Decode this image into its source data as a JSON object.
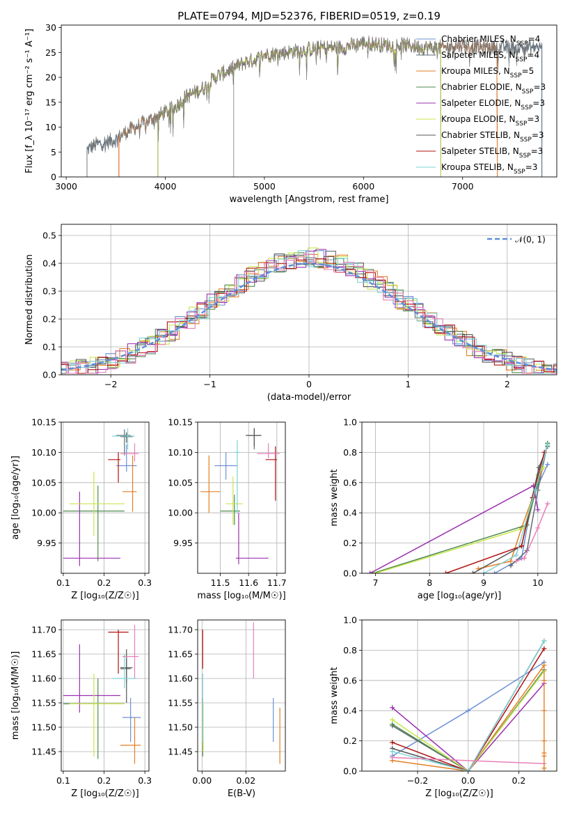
{
  "colors": {
    "Chabrier MILES": "#6b8fd6",
    "Salpeter MILES": "#5f6b73",
    "Kroupa MILES": "#e67e22",
    "Chabrier ELODIE": "#4f8a4f",
    "Salpeter ELODIE": "#9b30b0",
    "Kroupa ELODIE": "#c8e64c",
    "Chabrier STELIB": "#555555",
    "Salpeter STELIB": "#b01010",
    "Kroupa STELIB": "#7ed3d6",
    "Extra": "#e87fb8",
    "gauss": "#5b8fd9",
    "grid": "#b0b0b0"
  },
  "figure_title": "PLATE=0794, MJD=52376, FIBERID=0519, z=0.19",
  "chart_data": [
    {
      "id": "spectrum",
      "type": "line",
      "xlabel": "wavelength [Angstrom, rest frame]",
      "ylabel": "Flux [f_λ 10⁻¹⁷ erg cm⁻² s⁻¹ A⁻¹]",
      "xlim": [
        2950,
        7950
      ],
      "ylim": [
        0,
        30.5
      ],
      "xticks": [
        "3000",
        "4000",
        "5000",
        "6000",
        "7000"
      ],
      "yticks": [
        "0",
        "5",
        "10",
        "15",
        "20",
        "25",
        "30"
      ],
      "grid": false,
      "legend_position": "right",
      "legend": [
        "Chabrier MILES, N_SSP=4",
        "Salpeter MILES, N_SSP=4",
        "Kroupa MILES, N_SSP=5",
        "Chabrier ELODIE, N_SSP=3",
        "Salpeter ELODIE, N_SSP=3",
        "Kroupa ELODIE, N_SSP=3",
        "Chabrier STELIB, N_SSP=3",
        "Salpeter STELIB, N_SSP=3",
        "Kroupa STELIB, N_SSP=3"
      ],
      "continuum_x": [
        3210,
        3300,
        3400,
        3500,
        3600,
        3700,
        3800,
        3900,
        4000,
        4100,
        4200,
        4300,
        4400,
        4500,
        4600,
        4700,
        4800,
        4900,
        5000,
        5200,
        5400,
        5600,
        5800,
        6000,
        6200,
        6400,
        6600,
        6800,
        7000,
        7200,
        7400,
        7800
      ],
      "continuum_y": [
        5.5,
        6.5,
        7,
        7.5,
        9,
        10,
        11,
        12,
        13,
        14,
        16,
        17,
        18,
        20,
        21,
        22,
        23,
        23.5,
        24.5,
        25,
        25.5,
        26,
        26,
        27,
        26.5,
        26.5,
        26,
        26,
        26.5,
        26,
        26,
        26
      ],
      "model_starts": [
        3210,
        3210,
        3530,
        3920,
        3920,
        3920,
        3210,
        3530,
        3210
      ],
      "model_ends": [
        7800,
        7800,
        7350,
        6780,
        6780,
        6780,
        7800,
        7350,
        7800
      ],
      "data_spikes_x": [
        4690
      ]
    },
    {
      "id": "residuals",
      "type": "bar",
      "xlabel": "(data-model)/error",
      "ylabel": "Normed distribution",
      "xlim": [
        -2.5,
        2.5
      ],
      "ylim": [
        0,
        0.54
      ],
      "xticks": [
        "−2",
        "−1",
        "0",
        "1",
        "2"
      ],
      "yticks": [
        "0.0",
        "0.1",
        "0.2",
        "0.3",
        "0.4",
        "0.5"
      ],
      "grid": true,
      "legend_position": "top-right",
      "legend": [
        "𝒩(0, 1)"
      ],
      "bin_width": 0.1,
      "note": "step histograms, one per model"
    },
    {
      "id": "age_vs_Z",
      "type": "scatter",
      "xlabel": "Z [log₁₀(Z/Z☉)]",
      "ylabel": "age  [log₁₀(age/yr)]",
      "xlim": [
        0.095,
        0.31
      ],
      "ylim": [
        9.9,
        10.15
      ],
      "xticks": [
        "0.1",
        "0.2",
        "0.3"
      ],
      "yticks": [
        "9.95",
        "10.00",
        "10.05",
        "10.10",
        "10.15"
      ],
      "grid": true,
      "points": [
        {
          "m": 0,
          "x": 0.255,
          "xerr": [
            0.23,
            0.28
          ],
          "y": 10.078,
          "yerr": [
            10.068,
            10.113
          ]
        },
        {
          "m": 1,
          "x": 0.25,
          "xerr": [
            0.23,
            0.265
          ],
          "y": 10.128,
          "yerr": [
            10.095,
            10.138
          ]
        },
        {
          "m": 2,
          "x": 0.27,
          "xerr": [
            0.245,
            0.28
          ],
          "y": 10.035,
          "yerr": [
            10.002,
            10.095
          ]
        },
        {
          "m": 3,
          "x": 0.185,
          "xerr": [
            0.1,
            0.25
          ],
          "y": 10.003,
          "yerr": [
            9.92,
            10.045
          ]
        },
        {
          "m": 4,
          "x": 0.14,
          "xerr": [
            0.1,
            0.24
          ],
          "y": 9.925,
          "yerr": [
            9.912,
            10.035
          ]
        },
        {
          "m": 5,
          "x": 0.175,
          "xerr": [
            0.115,
            0.25
          ],
          "y": 10.015,
          "yerr": [
            9.962,
            10.068
          ]
        },
        {
          "m": 6,
          "x": 0.255,
          "xerr": [
            0.24,
            0.27
          ],
          "y": 10.126,
          "yerr": [
            10.116,
            10.133
          ]
        },
        {
          "m": 7,
          "x": 0.235,
          "xerr": [
            0.21,
            0.24
          ],
          "y": 10.088,
          "yerr": [
            10.05,
            10.1
          ]
        },
        {
          "m": 8,
          "x": 0.258,
          "xerr": [
            0.22,
            0.275
          ],
          "y": 10.127,
          "yerr": [
            10.105,
            10.14
          ]
        },
        {
          "m": 9,
          "x": 0.275,
          "xerr": [
            0.24,
            0.285
          ],
          "y": 10.098,
          "yerr": [
            10.085,
            10.115
          ]
        }
      ]
    },
    {
      "id": "age_vs_mass",
      "type": "scatter",
      "xlabel": "mass [log₁₀(M/M☉)]",
      "xlim": [
        11.42,
        11.73
      ],
      "ylim": [
        9.9,
        10.15
      ],
      "xticks": [
        "11.5",
        "11.6",
        "11.7"
      ],
      "yticks": [
        "9.95",
        "10.00",
        "10.05",
        "10.10",
        "10.15"
      ],
      "grid": true,
      "points": [
        {
          "m": 0,
          "x": 11.52,
          "xerr": [
            11.48,
            11.56
          ],
          "y": 10.078,
          "yerr": [
            10.055,
            10.1
          ]
        },
        {
          "m": 1,
          "x": 11.62,
          "xerr": [
            11.6,
            11.645
          ],
          "y": 10.128,
          "yerr": [
            10.105,
            10.14
          ]
        },
        {
          "m": 2,
          "x": 11.46,
          "xerr": [
            11.43,
            11.5
          ],
          "y": 10.035,
          "yerr": [
            10.0,
            10.095
          ]
        },
        {
          "m": 3,
          "x": 11.55,
          "xerr": [
            11.5,
            11.57
          ],
          "y": 10.003,
          "yerr": [
            9.98,
            10.03
          ]
        },
        {
          "m": 4,
          "x": 11.565,
          "xerr": [
            11.555,
            11.67
          ],
          "y": 9.925,
          "yerr": [
            9.915,
            10.0
          ]
        },
        {
          "m": 5,
          "x": 11.545,
          "xerr": [
            11.52,
            11.58
          ],
          "y": 10.015,
          "yerr": [
            9.98,
            10.06
          ]
        },
        {
          "m": 6,
          "x": 11.62,
          "xerr": [
            11.59,
            11.645
          ],
          "y": 10.128,
          "yerr": [
            10.11,
            10.14
          ]
        },
        {
          "m": 7,
          "x": 11.695,
          "xerr": [
            11.66,
            11.7
          ],
          "y": 10.088,
          "yerr": [
            10.02,
            10.11
          ]
        },
        {
          "m": 8,
          "x": 11.56,
          "xerr": [
            11.55,
            11.57
          ],
          "y": 10.1,
          "yerr": [
            10.0,
            10.12
          ]
        },
        {
          "m": 9,
          "x": 11.67,
          "xerr": [
            11.63,
            11.71
          ],
          "y": 10.098,
          "yerr": [
            10.09,
            10.115
          ]
        }
      ]
    },
    {
      "id": "massweight_vs_age",
      "type": "line",
      "xlabel": "age  [log₁₀(age/yr)]",
      "ylabel": "mass weight",
      "xlim": [
        6.75,
        10.35
      ],
      "ylim": [
        0,
        1
      ],
      "xticks": [
        "7",
        "8",
        "9",
        "10"
      ],
      "yticks": [
        "0.0",
        "0.2",
        "0.4",
        "0.6",
        "0.8",
        "1.0"
      ],
      "grid": true,
      "series": [
        {
          "m": 0,
          "x": [
            9.2,
            9.7,
            9.9,
            10.18
          ],
          "y": [
            0.0,
            0.1,
            0.5,
            0.72
          ]
        },
        {
          "m": 1,
          "x": [
            9.5,
            9.8,
            10.0,
            10.18
          ],
          "y": [
            0.05,
            0.15,
            0.55,
            0.86
          ]
        },
        {
          "m": 2,
          "x": [
            8.9,
            9.5,
            9.7,
            10.1
          ],
          "y": [
            0.03,
            0.08,
            0.3,
            0.7
          ]
        },
        {
          "m": 3,
          "x": [
            6.95,
            9.8,
            10.0,
            10.18
          ],
          "y": [
            0.0,
            0.32,
            0.6,
            0.86
          ]
        },
        {
          "m": 4,
          "x": [
            6.9,
            9.92,
            10.0
          ],
          "y": [
            0.0,
            0.58,
            0.42
          ]
        },
        {
          "m": 5,
          "x": [
            7.0,
            9.75,
            10.0,
            10.1
          ],
          "y": [
            0.0,
            0.3,
            0.65,
            0.7
          ]
        },
        {
          "m": 6,
          "x": [
            8.8,
            9.7,
            10.02,
            10.18
          ],
          "y": [
            0.0,
            0.18,
            0.7,
            0.84
          ]
        },
        {
          "m": 7,
          "x": [
            8.3,
            9.7,
            9.9,
            10.12
          ],
          "y": [
            0.0,
            0.18,
            0.5,
            0.8
          ]
        },
        {
          "m": 8,
          "x": [
            9.0,
            9.6,
            9.95,
            10.18
          ],
          "y": [
            0.0,
            0.12,
            0.55,
            0.85
          ]
        },
        {
          "m": 9,
          "x": [
            9.6,
            9.75,
            10.0,
            10.18
          ],
          "y": [
            0.08,
            0.1,
            0.3,
            0.46
          ]
        }
      ]
    },
    {
      "id": "mass_vs_Z",
      "type": "scatter",
      "xlabel": "Z [log₁₀(Z/Z☉)]",
      "ylabel": "mass [log₁₀(M/M☉)]",
      "xlim": [
        0.095,
        0.31
      ],
      "ylim": [
        11.41,
        11.72
      ],
      "xticks": [
        "0.1",
        "0.2",
        "0.3"
      ],
      "yticks": [
        "11.45",
        "11.50",
        "11.55",
        "11.60",
        "11.65",
        "11.70"
      ],
      "grid": true,
      "points": [
        {
          "m": 0,
          "x": 0.265,
          "xerr": [
            0.245,
            0.29
          ],
          "y": 11.52,
          "yerr": [
            11.47,
            11.56
          ]
        },
        {
          "m": 1,
          "x": 0.255,
          "xerr": [
            0.24,
            0.265
          ],
          "y": 11.62,
          "yerr": [
            11.59,
            11.64
          ]
        },
        {
          "m": 2,
          "x": 0.275,
          "xerr": [
            0.24,
            0.29
          ],
          "y": 11.463,
          "yerr": [
            11.425,
            11.52
          ]
        },
        {
          "m": 3,
          "x": 0.185,
          "xerr": [
            0.1,
            0.25
          ],
          "y": 11.548,
          "yerr": [
            11.435,
            11.6
          ]
        },
        {
          "m": 4,
          "x": 0.14,
          "xerr": [
            0.1,
            0.24
          ],
          "y": 11.565,
          "yerr": [
            11.53,
            11.67
          ]
        },
        {
          "m": 5,
          "x": 0.175,
          "xerr": [
            0.115,
            0.25
          ],
          "y": 11.548,
          "yerr": [
            11.44,
            11.61
          ]
        },
        {
          "m": 6,
          "x": 0.255,
          "xerr": [
            0.24,
            0.27
          ],
          "y": 11.622,
          "yerr": [
            11.55,
            11.66
          ]
        },
        {
          "m": 7,
          "x": 0.235,
          "xerr": [
            0.21,
            0.26
          ],
          "y": 11.695,
          "yerr": [
            11.61,
            11.7
          ]
        },
        {
          "m": 8,
          "x": 0.25,
          "xerr": [
            0.22,
            0.28
          ],
          "y": 11.6,
          "yerr": [
            11.58,
            11.65
          ]
        },
        {
          "m": 9,
          "x": 0.275,
          "xerr": [
            0.245,
            0.285
          ],
          "y": 11.645,
          "yerr": [
            11.6,
            11.71
          ]
        }
      ]
    },
    {
      "id": "mass_vs_ebv",
      "type": "scatter",
      "xlabel": "E(B-V)",
      "xlim": [
        -0.002,
        0.038
      ],
      "ylim": [
        11.41,
        11.72
      ],
      "xticks": [
        "0.00",
        "0.02"
      ],
      "yticks": [
        "11.45",
        "11.50",
        "11.55",
        "11.60",
        "11.65",
        "11.70"
      ],
      "grid": true,
      "points": [
        {
          "m": 0,
          "x": 0.0325,
          "y": 11.52,
          "yerr": [
            11.47,
            11.56
          ]
        },
        {
          "m": 2,
          "x": 0.0355,
          "y": 11.463,
          "yerr": [
            11.425,
            11.54
          ]
        },
        {
          "m": 3,
          "x": 0.0003,
          "y": 11.5,
          "yerr": [
            11.44,
            11.56
          ]
        },
        {
          "m": 5,
          "x": 0.0005,
          "y": 11.5,
          "yerr": [
            11.45,
            11.55
          ]
        },
        {
          "m": 7,
          "x": 0.0003,
          "y": 11.66,
          "yerr": [
            11.62,
            11.7
          ]
        },
        {
          "m": 8,
          "x": 0.0003,
          "y": 11.55,
          "yerr": [
            11.47,
            11.61
          ]
        },
        {
          "m": 9,
          "x": 0.0235,
          "y": 11.655,
          "yerr": [
            11.6,
            11.715
          ]
        }
      ]
    },
    {
      "id": "massweight_vs_Z",
      "type": "line",
      "xlabel": "Z [log₁₀(Z/Z☉)]",
      "ylabel": "mass weight",
      "xlim": [
        -0.42,
        0.35
      ],
      "ylim": [
        0,
        1
      ],
      "xticks": [
        "−0.2",
        "0.0",
        "0.2"
      ],
      "yticks": [
        "0.0",
        "0.2",
        "0.4",
        "0.6",
        "0.8",
        "1.0"
      ],
      "grid": true,
      "series": [
        {
          "m": 0,
          "x": [
            -0.3,
            0.0,
            0.3
          ],
          "y": [
            0.1,
            0.4,
            0.72
          ]
        },
        {
          "m": 1,
          "x": [
            -0.3,
            0.0,
            0.3
          ],
          "y": [
            0.3,
            0.0,
            0.86
          ]
        },
        {
          "m": 2,
          "x": [
            -0.3,
            0.0,
            0.3
          ],
          "y": [
            0.07,
            0.0,
            0.7
          ]
        },
        {
          "m": 3,
          "x": [
            -0.3,
            0.0,
            0.3
          ],
          "y": [
            0.31,
            0.0,
            0.67
          ]
        },
        {
          "m": 4,
          "x": [
            -0.3,
            0.0,
            0.3
          ],
          "y": [
            0.42,
            0.0,
            0.58
          ]
        },
        {
          "m": 5,
          "x": [
            -0.3,
            0.0,
            0.3
          ],
          "y": [
            0.34,
            0.0,
            0.66
          ]
        },
        {
          "m": 6,
          "x": [
            -0.3,
            0.0,
            0.3
          ],
          "y": [
            0.15,
            0.0,
            0.86
          ]
        },
        {
          "m": 7,
          "x": [
            -0.3,
            0.0,
            0.3
          ],
          "y": [
            0.19,
            0.0,
            0.81
          ]
        },
        {
          "m": 8,
          "x": [
            -0.3,
            0.0,
            0.3
          ],
          "y": [
            0.13,
            0.0,
            0.86
          ]
        },
        {
          "m": 9,
          "x": [
            -0.3,
            0.3
          ],
          "y": [
            0.09,
            0.05
          ]
        }
      ],
      "tick_marks_at_right": [
        0.02,
        0.1,
        0.12,
        0.2,
        0.4,
        0.6
      ]
    }
  ]
}
